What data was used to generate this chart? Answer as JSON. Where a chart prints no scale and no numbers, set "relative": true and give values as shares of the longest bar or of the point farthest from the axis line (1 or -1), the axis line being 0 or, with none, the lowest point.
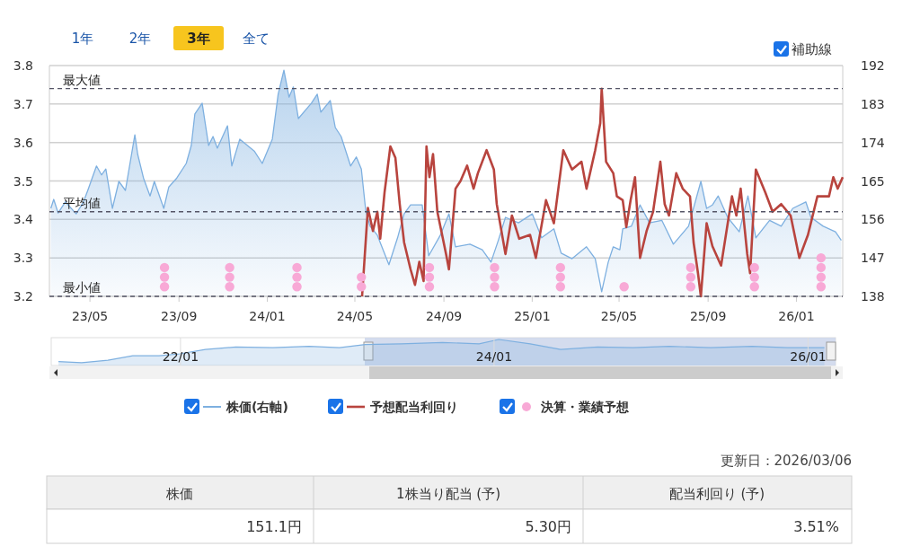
{
  "chart_data": [
    {
      "type": "line",
      "xlim": [
        "2023-03-06",
        "2026-03-06"
      ],
      "xticks": [
        {
          "value": "2023-05-01",
          "label": "23/05"
        },
        {
          "value": "2023-09-01",
          "label": "23/09"
        },
        {
          "value": "2024-01-01",
          "label": "24/01"
        },
        {
          "value": "2024-05-01",
          "label": "24/05"
        },
        {
          "value": "2024-09-01",
          "label": "24/09"
        },
        {
          "value": "2025-01-01",
          "label": "25/01"
        },
        {
          "value": "2025-05-01",
          "label": "25/05"
        },
        {
          "value": "2025-09-01",
          "label": "25/09"
        },
        {
          "value": "2026-01-01",
          "label": "26/01"
        }
      ],
      "ylim": [
        3.2,
        3.8
      ],
      "yticks": [
        {
          "value": 3.2,
          "label": "3.2"
        },
        {
          "value": 3.3,
          "label": "3.3"
        },
        {
          "value": 3.4,
          "label": "3.4"
        },
        {
          "value": 3.5,
          "label": "3.5"
        },
        {
          "value": 3.6,
          "label": "3.6"
        },
        {
          "value": 3.7,
          "label": "3.7"
        },
        {
          "value": 3.8,
          "label": "3.8"
        }
      ],
      "y2lim": [
        138,
        192
      ],
      "y2ticks": [
        138,
        147,
        156,
        165,
        174,
        183,
        192
      ],
      "grid": "y",
      "legend": "bottom",
      "ref_lines": [
        {
          "axis": "y",
          "value": 3.74,
          "label": "最大値",
          "color": "#555566",
          "line_style": "dashed"
        },
        {
          "axis": "y",
          "value": 3.42,
          "label": "平均値",
          "color": "#555566",
          "line_style": "dashed"
        },
        {
          "axis": "y",
          "value": 3.2,
          "label": "最小値",
          "color": "#555566",
          "line_style": "dashed"
        }
      ],
      "series": [
        {
          "name": "株価(右軸)",
          "type": "area",
          "axis": "y2",
          "color": "#7eb0e0",
          "x": [
            "2023-03-08",
            "2023-03-12",
            "2023-03-18",
            "2023-03-28",
            "2023-04-12",
            "2023-04-22",
            "2023-04-28",
            "2023-05-10",
            "2023-05-17",
            "2023-05-23",
            "2023-06-01",
            "2023-06-10",
            "2023-06-19",
            "2023-07-02",
            "2023-07-06",
            "2023-07-14",
            "2023-07-23",
            "2023-07-29",
            "2023-08-11",
            "2023-08-18",
            "2023-08-29",
            "2023-09-11",
            "2023-09-18",
            "2023-09-23",
            "2023-10-03",
            "2023-10-12",
            "2023-10-18",
            "2023-10-24",
            "2023-11-07",
            "2023-11-13",
            "2023-11-24",
            "2023-12-14",
            "2023-12-25",
            "2024-01-08",
            "2024-01-16",
            "2024-01-24",
            "2024-01-31",
            "2024-02-06",
            "2024-02-13",
            "2024-03-02",
            "2024-03-10",
            "2024-03-15",
            "2024-03-28",
            "2024-04-04",
            "2024-04-12",
            "2024-04-25",
            "2024-05-03",
            "2024-05-10",
            "2024-05-16",
            "2024-05-22",
            "2024-06-01",
            "2024-06-17",
            "2024-06-29",
            "2024-07-08",
            "2024-07-17",
            "2024-08-02",
            "2024-08-11",
            "2024-08-27",
            "2024-09-08",
            "2024-09-17",
            "2024-10-07",
            "2024-10-24",
            "2024-11-05",
            "2024-11-15",
            "2024-11-25",
            "2024-12-13",
            "2025-01-01",
            "2025-01-14",
            "2025-01-31",
            "2025-02-10",
            "2025-02-25",
            "2025-03-17",
            "2025-03-29",
            "2025-04-07",
            "2025-04-16",
            "2025-04-23",
            "2025-05-02",
            "2025-05-06",
            "2025-05-18",
            "2025-05-30",
            "2025-06-12",
            "2025-06-29",
            "2025-07-15",
            "2025-08-05",
            "2025-08-22",
            "2025-08-30",
            "2025-09-07",
            "2025-09-15",
            "2025-09-28",
            "2025-10-14",
            "2025-10-26",
            "2025-11-06",
            "2025-11-25",
            "2025-12-11",
            "2025-12-27",
            "2026-01-14",
            "2026-01-21",
            "2026-02-07",
            "2026-02-24",
            "2026-03-04"
          ],
          "values": [
            158.6,
            160.7,
            157.5,
            160.1,
            157.3,
            160.1,
            162.8,
            168.5,
            166.4,
            167.8,
            158.6,
            164.9,
            162.8,
            175.8,
            171.2,
            165.7,
            161.5,
            164.9,
            158.6,
            163.6,
            165.7,
            169.1,
            173.3,
            180.7,
            183.2,
            173.3,
            175.4,
            172.7,
            177.9,
            168.5,
            174.8,
            172.0,
            169.1,
            174.8,
            185.3,
            190.9,
            184.6,
            187.0,
            179.6,
            183.2,
            185.3,
            181.1,
            183.8,
            177.5,
            175.4,
            168.5,
            170.6,
            167.8,
            158.0,
            154.4,
            152.3,
            145.4,
            151.7,
            157.3,
            159.4,
            159.4,
            147.5,
            152.3,
            157.3,
            149.6,
            150.2,
            148.9,
            146.0,
            151.0,
            156.5,
            155.2,
            157.3,
            151.7,
            153.8,
            148.1,
            146.8,
            149.6,
            146.8,
            139.1,
            146.0,
            149.6,
            148.9,
            153.8,
            154.4,
            159.4,
            155.2,
            155.8,
            150.2,
            154.4,
            164.9,
            158.6,
            159.4,
            161.5,
            156.5,
            153.1,
            161.5,
            151.7,
            155.8,
            154.4,
            158.6,
            160.1,
            156.5,
            154.4,
            153.1,
            151.1
          ]
        },
        {
          "name": "予想配当利回り",
          "color": "#b8443e",
          "x": [
            "2024-05-11",
            "2024-05-19",
            "2024-05-26",
            "2024-06-01",
            "2024-06-05",
            "2024-06-11",
            "2024-06-19",
            "2024-06-26",
            "2024-07-02",
            "2024-07-08",
            "2024-07-17",
            "2024-07-23",
            "2024-07-29",
            "2024-08-04",
            "2024-08-08",
            "2024-08-12",
            "2024-08-17",
            "2024-08-23",
            "2024-09-04",
            "2024-09-08",
            "2024-09-17",
            "2024-09-24",
            "2024-10-03",
            "2024-10-12",
            "2024-10-18",
            "2024-10-30",
            "2024-11-09",
            "2024-11-13",
            "2024-11-25",
            "2024-12-04",
            "2024-12-14",
            "2024-12-29",
            "2025-01-06",
            "2025-01-20",
            "2025-01-31",
            "2025-02-13",
            "2025-02-25",
            "2025-03-10",
            "2025-03-17",
            "2025-03-29",
            "2025-04-05",
            "2025-04-07",
            "2025-04-13",
            "2025-04-23",
            "2025-04-28",
            "2025-05-06",
            "2025-05-11",
            "2025-05-17",
            "2025-05-23",
            "2025-05-30",
            "2025-06-08",
            "2025-06-17",
            "2025-06-27",
            "2025-07-03",
            "2025-07-09",
            "2025-07-19",
            "2025-07-28",
            "2025-08-07",
            "2025-08-12",
            "2025-08-18",
            "2025-08-22",
            "2025-08-30",
            "2025-09-07",
            "2025-09-19",
            "2025-10-04",
            "2025-10-10",
            "2025-10-16",
            "2025-10-25",
            "2025-10-29",
            "2025-11-06",
            "2025-11-19",
            "2025-11-29",
            "2025-12-11",
            "2025-12-24",
            "2026-01-05",
            "2026-01-17",
            "2026-01-30",
            "2026-02-15",
            "2026-02-21",
            "2026-02-27",
            "2026-03-06"
          ],
          "values": [
            3.2,
            3.43,
            3.37,
            3.42,
            3.35,
            3.47,
            3.59,
            3.56,
            3.44,
            3.34,
            3.27,
            3.23,
            3.29,
            3.24,
            3.59,
            3.51,
            3.57,
            3.42,
            3.31,
            3.27,
            3.48,
            3.5,
            3.54,
            3.48,
            3.52,
            3.58,
            3.53,
            3.44,
            3.31,
            3.41,
            3.35,
            3.36,
            3.3,
            3.45,
            3.39,
            3.58,
            3.53,
            3.55,
            3.48,
            3.58,
            3.65,
            3.74,
            3.55,
            3.52,
            3.46,
            3.45,
            3.38,
            3.45,
            3.51,
            3.3,
            3.37,
            3.42,
            3.55,
            3.44,
            3.41,
            3.52,
            3.48,
            3.46,
            3.34,
            3.26,
            3.2,
            3.39,
            3.33,
            3.28,
            3.46,
            3.41,
            3.48,
            3.31,
            3.26,
            3.53,
            3.47,
            3.42,
            3.44,
            3.41,
            3.3,
            3.36,
            3.46,
            3.46,
            3.51,
            3.48,
            3.51
          ]
        },
        {
          "name": "決算・業績予想",
          "type": "scatter",
          "marker": "circle",
          "color": "#f8a9d6",
          "x": [
            "2023-08-12",
            "2023-08-12",
            "2023-08-12",
            "2023-11-10",
            "2023-11-10",
            "2023-11-10",
            "2024-02-11",
            "2024-02-11",
            "2024-02-11",
            "2024-05-10",
            "2024-05-10",
            "2024-08-12",
            "2024-08-12",
            "2024-08-12",
            "2024-11-10",
            "2024-11-10",
            "2024-11-10",
            "2025-02-09",
            "2025-02-09",
            "2025-02-09",
            "2025-05-08",
            "2025-08-08",
            "2025-08-08",
            "2025-08-08",
            "2025-11-04",
            "2025-11-04",
            "2025-11-04",
            "2026-02-04",
            "2026-02-04",
            "2026-02-04",
            "2026-02-04"
          ],
          "values": [
            3.225,
            3.25,
            3.275,
            3.225,
            3.25,
            3.275,
            3.225,
            3.25,
            3.275,
            3.225,
            3.25,
            3.225,
            3.25,
            3.275,
            3.225,
            3.25,
            3.275,
            3.225,
            3.25,
            3.275,
            3.225,
            3.225,
            3.25,
            3.275,
            3.225,
            3.25,
            3.275,
            3.225,
            3.25,
            3.275,
            3.3
          ]
        }
      ],
      "annotations": [
        "1年",
        "2年",
        "3年",
        "全て",
        "補助線",
        "更新日：2026/03/06",
        "株価",
        "1株当り配当 (予)",
        "配当利回り (予)",
        "151.1円",
        "5.30円",
        "3.51%"
      ]
    },
    {
      "type": "area",
      "relative": true,
      "tick_labels": "x",
      "grid": "x",
      "xlim": [
        "2021-03-06",
        "2026-03-06"
      ],
      "xticks": [
        {
          "value": "2022-01-01",
          "label": "22/01"
        },
        {
          "value": "2024-01-01",
          "label": "24/01"
        },
        {
          "value": "2026-01-01",
          "label": "26/01"
        }
      ],
      "bands": [
        {
          "axis": "x",
          "from": "2023-03-06",
          "to": "2026-03-06",
          "color": "#c9d3ea"
        }
      ],
      "series": [
        {
          "color": "#7eb0e0",
          "x": [
            "2021-03-23",
            "2021-05-16",
            "2021-07-16",
            "2021-09-12",
            "2021-11-12",
            "2021-12-30",
            "2022-02-28",
            "2022-05-10",
            "2022-08-04",
            "2022-10-27",
            "2023-01-06",
            "2023-03-07",
            "2023-05-30",
            "2023-09-03",
            "2023-11-27",
            "2024-01-12",
            "2024-03-25",
            "2024-06-04",
            "2024-08-29",
            "2024-11-20",
            "2025-02-12",
            "2025-05-19",
            "2025-08-23",
            "2025-11-14",
            "2026-02-08"
          ],
          "values": [
            0.12,
            0.08,
            0.17,
            0.35,
            0.35,
            0.43,
            0.6,
            0.7,
            0.67,
            0.73,
            0.67,
            0.8,
            0.83,
            0.88,
            0.83,
            1,
            0.83,
            0.6,
            0.7,
            0.67,
            0.73,
            0.67,
            0.73,
            0.67,
            0.67
          ]
        }
      ]
    }
  ]
}
